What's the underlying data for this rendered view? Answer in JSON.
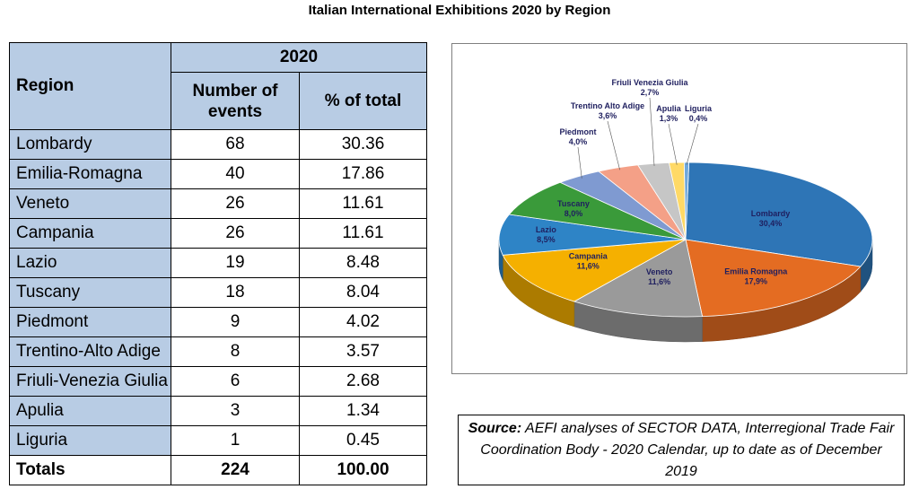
{
  "title": "Italian International Exhibitions 2020 by Region",
  "table": {
    "header_region": "Region",
    "header_year": "2020",
    "header_events": "Number of events",
    "header_pct": "% of total",
    "rows": [
      {
        "region": "Lombardy",
        "events": "68",
        "pct": "30.36"
      },
      {
        "region": "Emilia-Romagna",
        "events": "40",
        "pct": "17.86"
      },
      {
        "region": "Veneto",
        "events": "26",
        "pct": "11.61"
      },
      {
        "region": "Campania",
        "events": "26",
        "pct": "11.61"
      },
      {
        "region": "Lazio",
        "events": "19",
        "pct": "8.48"
      },
      {
        "region": "Tuscany",
        "events": "18",
        "pct": "8.04"
      },
      {
        "region": "Piedmont",
        "events": "9",
        "pct": "4.02"
      },
      {
        "region": "Trentino-Alto Adige",
        "events": "8",
        "pct": "3.57"
      },
      {
        "region": "Friuli-Venezia Giulia",
        "events": "6",
        "pct": "2.68"
      },
      {
        "region": "Apulia",
        "events": "3",
        "pct": "1.34"
      },
      {
        "region": "Liguria",
        "events": "1",
        "pct": "0.45"
      }
    ],
    "totals": {
      "label": "Totals",
      "events": "224",
      "pct": "100.00"
    }
  },
  "source": {
    "label": "Source:",
    "text": "AEFI analyses of SECTOR DATA, Interregional Trade Fair Coordination Body - 2020 Calendar, up to date as of December 2019"
  },
  "chart_data": {
    "type": "pie",
    "title": "",
    "slices": [
      {
        "name": "Lombardy",
        "value": 30.4,
        "label": "30,4%",
        "color": "#2e75b6"
      },
      {
        "name": "Emilia Romagna",
        "value": 17.9,
        "label": "17,9%",
        "color": "#e46c22"
      },
      {
        "name": "Veneto",
        "value": 11.6,
        "label": "11,6%",
        "color": "#9a9a9a"
      },
      {
        "name": "Campania",
        "value": 11.6,
        "label": "11,6%",
        "color": "#f5b000"
      },
      {
        "name": "Lazio",
        "value": 8.5,
        "label": "8,5%",
        "color": "#2e84c6"
      },
      {
        "name": "Tuscany",
        "value": 8.0,
        "label": "8,0%",
        "color": "#3a9a3a"
      },
      {
        "name": "Piedmont",
        "value": 4.0,
        "label": "4,0%",
        "color": "#7f9ad1"
      },
      {
        "name": "Trentino Alto Adige",
        "value": 3.6,
        "label": "3,6%",
        "color": "#f4a087"
      },
      {
        "name": "Friuli Venezia Giulia",
        "value": 2.7,
        "label": "2,7%",
        "color": "#c6c6c6"
      },
      {
        "name": "Apulia",
        "value": 1.3,
        "label": "1,3%",
        "color": "#ffd966"
      },
      {
        "name": "Liguria",
        "value": 0.4,
        "label": "0,4%",
        "color": "#6fa8dc"
      }
    ]
  }
}
